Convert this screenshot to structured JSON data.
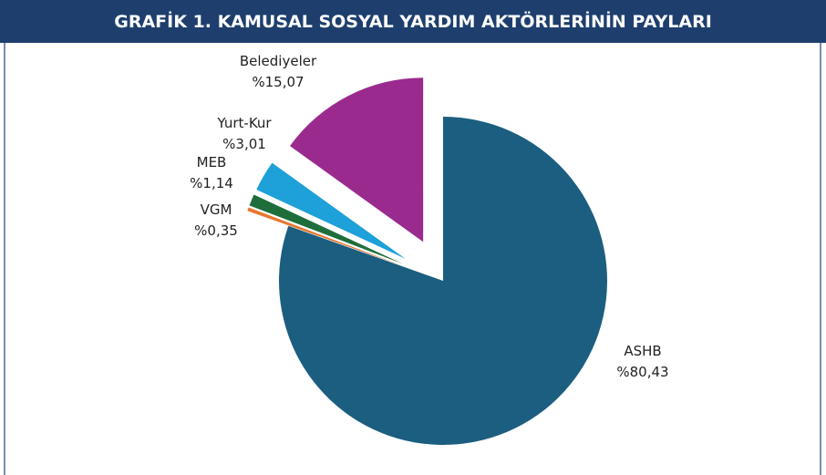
{
  "chart_data": {
    "type": "pie",
    "title": "GRAFİK 1. KAMUSAL SOSYAL YARDIM AKTÖRLERİNİN PAYLARI",
    "categories": [
      "ASHB",
      "VGM",
      "MEB",
      "Yurt-Kur",
      "Belediyeler"
    ],
    "values": [
      80.43,
      0.35,
      1.14,
      3.01,
      15.07
    ],
    "value_labels": [
      "%80,43",
      "%0,35",
      "%1,14",
      "%3,01",
      "%15,07"
    ],
    "colors": [
      "#1b5e80",
      "#e8772e",
      "#1e6e3c",
      "#1ea0d8",
      "#9b2a8f"
    ]
  }
}
